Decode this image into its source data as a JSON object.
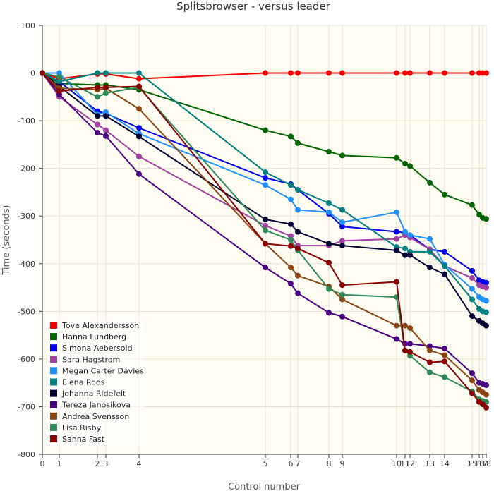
{
  "chart_data": {
    "type": "line",
    "title": "Splitsbrowser - versus leader",
    "xlabel": "Control number",
    "ylabel": "Time (seconds)",
    "ylim": [
      -800,
      100
    ],
    "yticks": [
      100,
      0,
      -100,
      -200,
      -300,
      -400,
      -500,
      -600,
      -700,
      -800
    ],
    "control_positions": [
      0,
      1,
      2,
      3,
      4,
      5,
      6,
      7,
      8,
      9,
      10,
      11,
      12,
      13,
      14,
      15,
      16,
      17,
      18
    ],
    "x_ticks": [
      "0",
      "1",
      "2",
      "3",
      "4",
      "5",
      "6",
      "7",
      "8",
      "9",
      "10",
      "11",
      "12",
      "13",
      "14",
      "15",
      "16",
      "17",
      "18"
    ],
    "x_tick_labels": [
      "0",
      "1",
      "2",
      "3",
      "4",
      "5",
      "6",
      "7",
      "8",
      "9",
      "10",
      "11",
      "12",
      "13",
      "14",
      "15",
      "16",
      "17",
      "18"
    ],
    "legend_position": "bottom-left",
    "background_color": "#fffcf2",
    "series": [
      {
        "name": "Tove Alexandersson",
        "color": "#ee0000",
        "values": [
          0,
          -12,
          -2,
          -2,
          -12,
          0,
          0,
          0,
          0,
          0,
          0,
          0,
          0,
          0,
          0,
          0,
          0,
          0,
          0
        ]
      },
      {
        "name": "Hanna Lundberg",
        "color": "#006400",
        "values": [
          0,
          -22,
          -25,
          -25,
          -35,
          -120,
          -133,
          -147,
          -165,
          -173,
          -178,
          -190,
          -195,
          -230,
          -255,
          -277,
          -297,
          -304,
          -306
        ]
      },
      {
        "name": "Simona Aebersold",
        "color": "#0000ee",
        "values": [
          0,
          -18,
          -80,
          -85,
          -115,
          -220,
          -233,
          -245,
          -295,
          -322,
          -333,
          -335,
          -340,
          -370,
          -375,
          -415,
          -435,
          -438,
          -440
        ]
      },
      {
        "name": "Sara Hagstrom",
        "color": "#a040a0",
        "values": [
          0,
          -50,
          -108,
          -120,
          -175,
          -320,
          -342,
          -362,
          -362,
          -352,
          -348,
          -340,
          -345,
          -370,
          -405,
          -430,
          -445,
          -448,
          -450
        ]
      },
      {
        "name": "Megan Carter Davies",
        "color": "#1e90ff",
        "values": [
          0,
          0,
          -87,
          -82,
          -127,
          -235,
          -265,
          -287,
          -292,
          -313,
          -292,
          -333,
          -340,
          -348,
          -402,
          -453,
          -470,
          -475,
          -478
        ]
      },
      {
        "name": "Elena Roos",
        "color": "#008080",
        "values": [
          0,
          -18,
          0,
          0,
          0,
          -208,
          -235,
          -245,
          -273,
          -287,
          -365,
          -368,
          -375,
          -375,
          -405,
          -475,
          -495,
          -500,
          -502
        ]
      },
      {
        "name": "Johanna Ridefelt",
        "color": "#000033",
        "values": [
          0,
          -28,
          -90,
          -90,
          -133,
          -307,
          -317,
          -333,
          -358,
          -362,
          -372,
          -382,
          -382,
          -408,
          -422,
          -510,
          -520,
          -525,
          -530
        ]
      },
      {
        "name": "Tereza Janosikova",
        "color": "#4b0082",
        "values": [
          0,
          -45,
          -125,
          -132,
          -212,
          -408,
          -442,
          -462,
          -503,
          -511,
          -558,
          -568,
          -568,
          -573,
          -578,
          -630,
          -650,
          -652,
          -655
        ]
      },
      {
        "name": "Andrea Svensson",
        "color": "#8b4513",
        "values": [
          0,
          -32,
          -35,
          -32,
          -75,
          -358,
          -408,
          -425,
          -448,
          -475,
          -530,
          -530,
          -535,
          -582,
          -592,
          -645,
          -665,
          -670,
          -675
        ]
      },
      {
        "name": "Lisa Risby",
        "color": "#2e8b57",
        "values": [
          0,
          -8,
          -50,
          -42,
          -30,
          -330,
          -350,
          -372,
          -453,
          -465,
          -470,
          -582,
          -593,
          -628,
          -638,
          -668,
          -685,
          -688,
          -690
        ]
      },
      {
        "name": "Sanna Fast",
        "color": "#8b0000",
        "values": [
          0,
          -38,
          -30,
          -30,
          -28,
          -358,
          -363,
          -368,
          -398,
          -445,
          -438,
          -582,
          -585,
          -607,
          -605,
          -672,
          -690,
          -695,
          -702
        ]
      }
    ]
  }
}
